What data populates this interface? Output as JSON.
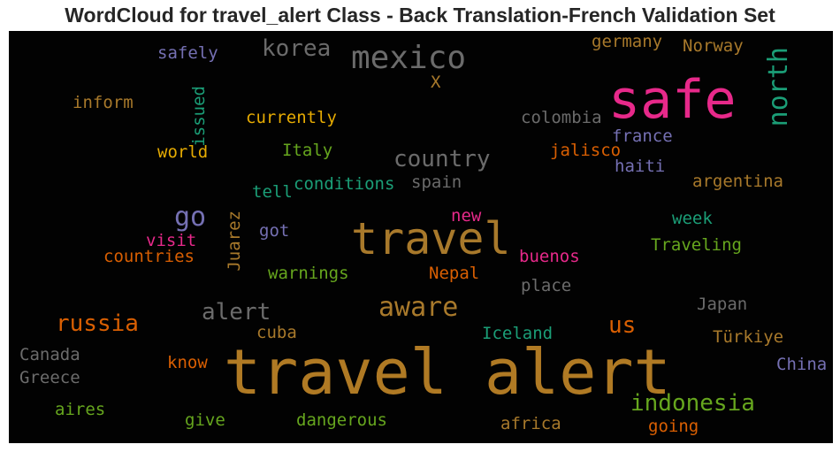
{
  "chart_data": {
    "type": "wordcloud",
    "title": "WordCloud for travel_alert Class - Back Translation-French Validation Set",
    "words": [
      {
        "text": "travel alert",
        "color": "#b07a24"
      },
      {
        "text": "travel",
        "color": "#a8792b"
      },
      {
        "text": "safe",
        "color": "#e7298a"
      },
      {
        "text": "mexico",
        "color": "#6b6b6b"
      },
      {
        "text": "aware",
        "color": "#a8792b"
      },
      {
        "text": "country",
        "color": "#6b6b6b"
      },
      {
        "text": "korea",
        "color": "#6b6b6b"
      },
      {
        "text": "north",
        "color": "#1b9e77"
      },
      {
        "text": "go",
        "color": "#7570b3"
      },
      {
        "text": "alert",
        "color": "#6b6b6b"
      },
      {
        "text": "russia",
        "color": "#d95f02"
      },
      {
        "text": "indonesia",
        "color": "#66a61e"
      },
      {
        "text": "us",
        "color": "#d95f02"
      },
      {
        "text": "Juarez",
        "color": "#a8792b"
      },
      {
        "text": "issued",
        "color": "#1b9e77"
      },
      {
        "text": "safely",
        "color": "#7570b3"
      },
      {
        "text": "germany",
        "color": "#a8792b"
      },
      {
        "text": "Norway",
        "color": "#a8792b"
      },
      {
        "text": "X",
        "color": "#a8792b"
      },
      {
        "text": "inform",
        "color": "#a8792b"
      },
      {
        "text": "currently",
        "color": "#e6ab02"
      },
      {
        "text": "colombia",
        "color": "#6b6b6b"
      },
      {
        "text": "france",
        "color": "#7570b3"
      },
      {
        "text": "world",
        "color": "#e6ab02"
      },
      {
        "text": "Italy",
        "color": "#66a61e"
      },
      {
        "text": "jalisco",
        "color": "#d95f02"
      },
      {
        "text": "haiti",
        "color": "#7570b3"
      },
      {
        "text": "tell",
        "color": "#1b9e77"
      },
      {
        "text": "conditions",
        "color": "#1b9e77"
      },
      {
        "text": "spain",
        "color": "#6b6b6b"
      },
      {
        "text": "argentina",
        "color": "#a8792b"
      },
      {
        "text": "new",
        "color": "#e7298a"
      },
      {
        "text": "week",
        "color": "#1b9e77"
      },
      {
        "text": "visit",
        "color": "#e7298a"
      },
      {
        "text": "got",
        "color": "#7570b3"
      },
      {
        "text": "countries",
        "color": "#d95f02"
      },
      {
        "text": "Traveling",
        "color": "#66a61e"
      },
      {
        "text": "buenos",
        "color": "#e7298a"
      },
      {
        "text": "warnings",
        "color": "#66a61e"
      },
      {
        "text": "Nepal",
        "color": "#d95f02"
      },
      {
        "text": "place",
        "color": "#6b6b6b"
      },
      {
        "text": "Japan",
        "color": "#6b6b6b"
      },
      {
        "text": "cuba",
        "color": "#a8792b"
      },
      {
        "text": "Iceland",
        "color": "#1b9e77"
      },
      {
        "text": "Türkiye",
        "color": "#a8792b"
      },
      {
        "text": "Canada",
        "color": "#6b6b6b"
      },
      {
        "text": "know",
        "color": "#d95f02"
      },
      {
        "text": "China",
        "color": "#7570b3"
      },
      {
        "text": "Greece",
        "color": "#6b6b6b"
      },
      {
        "text": "aires",
        "color": "#66a61e"
      },
      {
        "text": "give",
        "color": "#66a61e"
      },
      {
        "text": "dangerous",
        "color": "#66a61e"
      },
      {
        "text": "africa",
        "color": "#a8792b"
      },
      {
        "text": "going",
        "color": "#d95f02"
      }
    ]
  }
}
